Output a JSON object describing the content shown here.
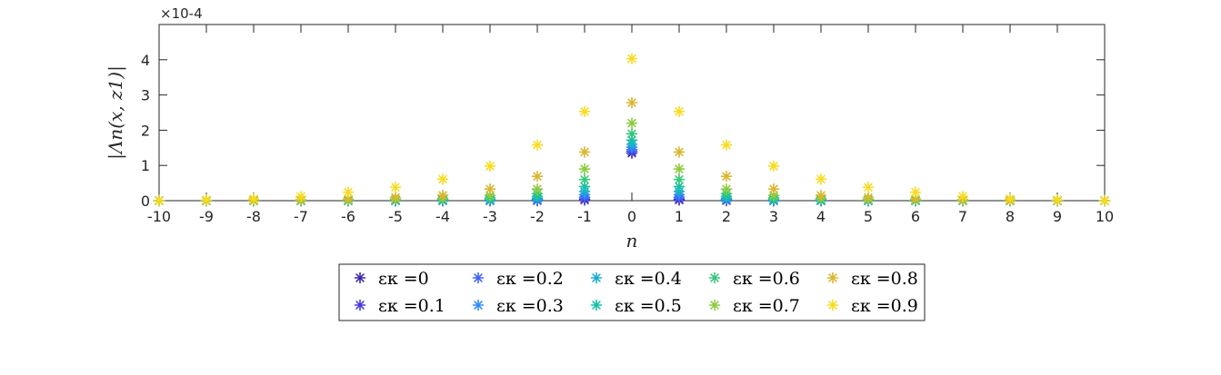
{
  "chart_data": {
    "type": "scatter",
    "xlabel": "n",
    "ylabel": "|Λn(x, z1)|",
    "y_exponent_label": "×10-4",
    "x_ticks": [
      "-10",
      "-9",
      "-8",
      "-7",
      "-6",
      "-5",
      "-4",
      "-3",
      "-2",
      "-1",
      "0",
      "1",
      "2",
      "3",
      "4",
      "5",
      "6",
      "7",
      "8",
      "9",
      "10"
    ],
    "y_ticks": [
      "0",
      "1",
      "2",
      "3",
      "4"
    ],
    "xlim": [
      -10,
      10
    ],
    "ylim": [
      0,
      5
    ],
    "y_scale_factor": 0.0001,
    "marker": "asterisk",
    "grid": false,
    "legend_position": "below",
    "legend_prefix": "εκ =",
    "x": [
      -10,
      -9,
      -8,
      -7,
      -6,
      -5,
      -4,
      -3,
      -2,
      -1,
      0,
      1,
      2,
      3,
      4,
      5,
      6,
      7,
      8,
      9,
      10
    ],
    "series": [
      {
        "name": "0",
        "color": "#3e26a8",
        "values": [
          0,
          0,
          0,
          0,
          0,
          0,
          0,
          0,
          0,
          0.02,
          1.35,
          0.02,
          0,
          0,
          0,
          0,
          0,
          0,
          0,
          0,
          0
        ]
      },
      {
        "name": "0.1",
        "color": "#4739dc",
        "values": [
          0,
          0,
          0,
          0,
          0,
          0,
          0,
          0,
          0.01,
          0.05,
          1.4,
          0.05,
          0.01,
          0,
          0,
          0,
          0,
          0,
          0,
          0,
          0
        ]
      },
      {
        "name": "0.2",
        "color": "#4163f4",
        "values": [
          0,
          0,
          0,
          0,
          0,
          0,
          0,
          0,
          0.02,
          0.1,
          1.45,
          0.1,
          0.02,
          0,
          0,
          0,
          0,
          0,
          0,
          0,
          0
        ]
      },
      {
        "name": "0.3",
        "color": "#2f8cf6",
        "values": [
          0,
          0,
          0,
          0,
          0,
          0,
          0,
          0.01,
          0.04,
          0.17,
          1.52,
          0.17,
          0.04,
          0.01,
          0,
          0,
          0,
          0,
          0,
          0,
          0
        ]
      },
      {
        "name": "0.4",
        "color": "#19acd0",
        "values": [
          0,
          0,
          0,
          0,
          0,
          0,
          0.01,
          0.02,
          0.07,
          0.26,
          1.6,
          0.26,
          0.07,
          0.02,
          0.01,
          0,
          0,
          0,
          0,
          0,
          0
        ]
      },
      {
        "name": "0.5",
        "color": "#15bfa7",
        "values": [
          0,
          0,
          0,
          0,
          0,
          0.01,
          0.02,
          0.04,
          0.12,
          0.4,
          1.72,
          0.4,
          0.12,
          0.04,
          0.02,
          0.01,
          0,
          0,
          0,
          0,
          0
        ]
      },
      {
        "name": "0.6",
        "color": "#37c77a",
        "values": [
          0,
          0,
          0,
          0,
          0.01,
          0.02,
          0.04,
          0.08,
          0.2,
          0.6,
          1.9,
          0.6,
          0.2,
          0.08,
          0.04,
          0.02,
          0.01,
          0,
          0,
          0,
          0
        ]
      },
      {
        "name": "0.7",
        "color": "#8ccb3e",
        "values": [
          0,
          0,
          0,
          0.01,
          0.02,
          0.04,
          0.07,
          0.15,
          0.33,
          0.9,
          2.2,
          0.9,
          0.33,
          0.15,
          0.07,
          0.04,
          0.02,
          0.01,
          0,
          0,
          0
        ]
      },
      {
        "name": "0.8",
        "color": "#dbb62e",
        "values": [
          0,
          0.01,
          0.02,
          0.03,
          0.05,
          0.09,
          0.15,
          0.33,
          0.69,
          1.38,
          2.78,
          1.38,
          0.69,
          0.33,
          0.15,
          0.09,
          0.05,
          0.03,
          0.02,
          0.01,
          0
        ]
      },
      {
        "name": "0.9",
        "color": "#f8db20",
        "values": [
          0,
          0.02,
          0.05,
          0.12,
          0.24,
          0.38,
          0.61,
          0.98,
          1.58,
          2.53,
          4.03,
          2.53,
          1.58,
          0.98,
          0.61,
          0.38,
          0.24,
          0.12,
          0.05,
          0.02,
          0
        ]
      }
    ]
  }
}
